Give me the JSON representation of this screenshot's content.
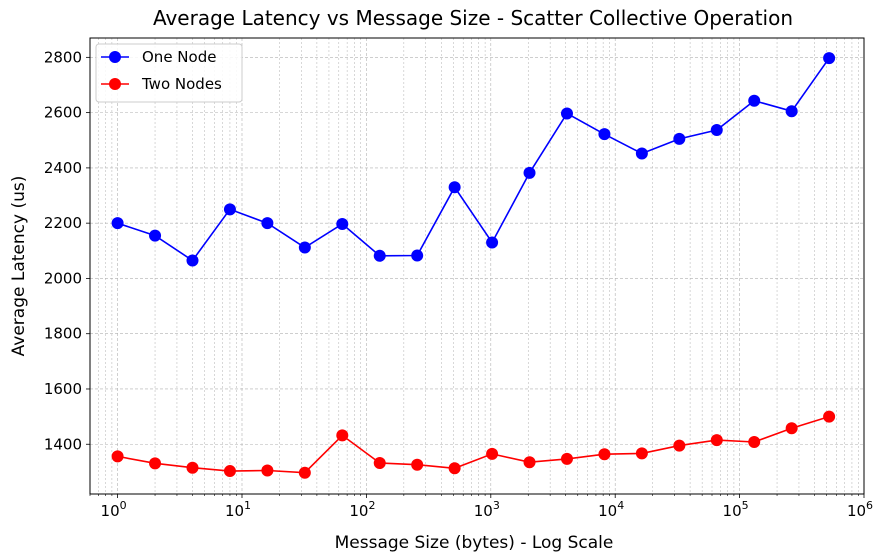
{
  "chart_data": {
    "type": "line",
    "title": "Average Latency vs Message Size - Scatter Collective Operation",
    "xlabel": "Message Size (bytes) - Log Scale",
    "ylabel": "Average Latency (us)",
    "x_scale": "log",
    "xlim": [
      0.6,
      1000000
    ],
    "ylim": [
      1220,
      2870
    ],
    "x_ticks": [
      {
        "value": 1,
        "base": "10",
        "exp": "0"
      },
      {
        "value": 10,
        "base": "10",
        "exp": "1"
      },
      {
        "value": 100,
        "base": "10",
        "exp": "2"
      },
      {
        "value": 1000,
        "base": "10",
        "exp": "3"
      },
      {
        "value": 10000,
        "base": "10",
        "exp": "4"
      },
      {
        "value": 100000,
        "base": "10",
        "exp": "5"
      },
      {
        "value": 1000000,
        "base": "10",
        "exp": "6"
      }
    ],
    "y_ticks": [
      1400,
      1600,
      1800,
      2000,
      2200,
      2400,
      2600,
      2800
    ],
    "grid": true,
    "legend_position": "top-left",
    "x": [
      1,
      2,
      4,
      8,
      16,
      32,
      64,
      128,
      256,
      512,
      1024,
      2048,
      4096,
      8192,
      16384,
      32768,
      65536,
      131072,
      262144,
      524288
    ],
    "series": [
      {
        "name": "One Node",
        "color": "#0000ff",
        "values": [
          2200,
          2155,
          2065,
          2250,
          2200,
          2112,
          2197,
          2082,
          2083,
          2330,
          2130,
          2382,
          2597,
          2522,
          2452,
          2505,
          2537,
          2643,
          2605,
          2797
        ]
      },
      {
        "name": "Two Nodes",
        "color": "#ff0000",
        "values": [
          1356,
          1331,
          1315,
          1303,
          1305,
          1297,
          1432,
          1332,
          1326,
          1313,
          1365,
          1335,
          1347,
          1364,
          1367,
          1395,
          1415,
          1408,
          1458,
          1500
        ]
      }
    ]
  }
}
